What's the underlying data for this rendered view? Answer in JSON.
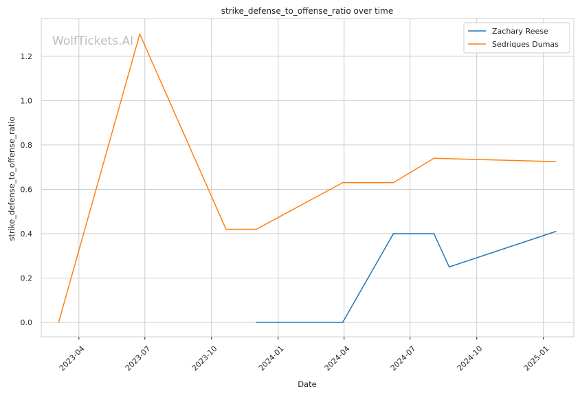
{
  "chart_data": {
    "type": "line",
    "title": "strike_defense_to_offense_ratio over time",
    "xlabel": "Date",
    "ylabel": "strike_defense_to_offense_ratio",
    "watermark": "WolfTickets.AI",
    "x_ticks": [
      "2023-04",
      "2023-07",
      "2023-10",
      "2024-01",
      "2024-04",
      "2024-07",
      "2024-10",
      "2025-01"
    ],
    "y_ticks": [
      "0.0",
      "0.2",
      "0.4",
      "0.6",
      "0.8",
      "1.0",
      "1.2"
    ],
    "xlim": [
      "2023-02-08",
      "2025-02-12"
    ],
    "ylim": [
      -0.065,
      1.37
    ],
    "grid": true,
    "legend_position": "top-right",
    "series": [
      {
        "name": "Zachary Reese",
        "color": "#1f77b4",
        "points": [
          {
            "x": "2023-12-02",
            "y": 0.0
          },
          {
            "x": "2024-03-30",
            "y": 0.0
          },
          {
            "x": "2024-06-08",
            "y": 0.4
          },
          {
            "x": "2024-08-03",
            "y": 0.4
          },
          {
            "x": "2024-08-24",
            "y": 0.25
          },
          {
            "x": "2025-01-18",
            "y": 0.41
          }
        ]
      },
      {
        "name": "Sedriques Dumas",
        "color": "#ff7f0e",
        "points": [
          {
            "x": "2023-03-04",
            "y": 0.0
          },
          {
            "x": "2023-06-24",
            "y": 1.3
          },
          {
            "x": "2023-10-21",
            "y": 0.42
          },
          {
            "x": "2023-12-02",
            "y": 0.42
          },
          {
            "x": "2024-03-30",
            "y": 0.63
          },
          {
            "x": "2024-06-08",
            "y": 0.63
          },
          {
            "x": "2024-08-03",
            "y": 0.74
          },
          {
            "x": "2025-01-18",
            "y": 0.725
          }
        ]
      }
    ]
  }
}
